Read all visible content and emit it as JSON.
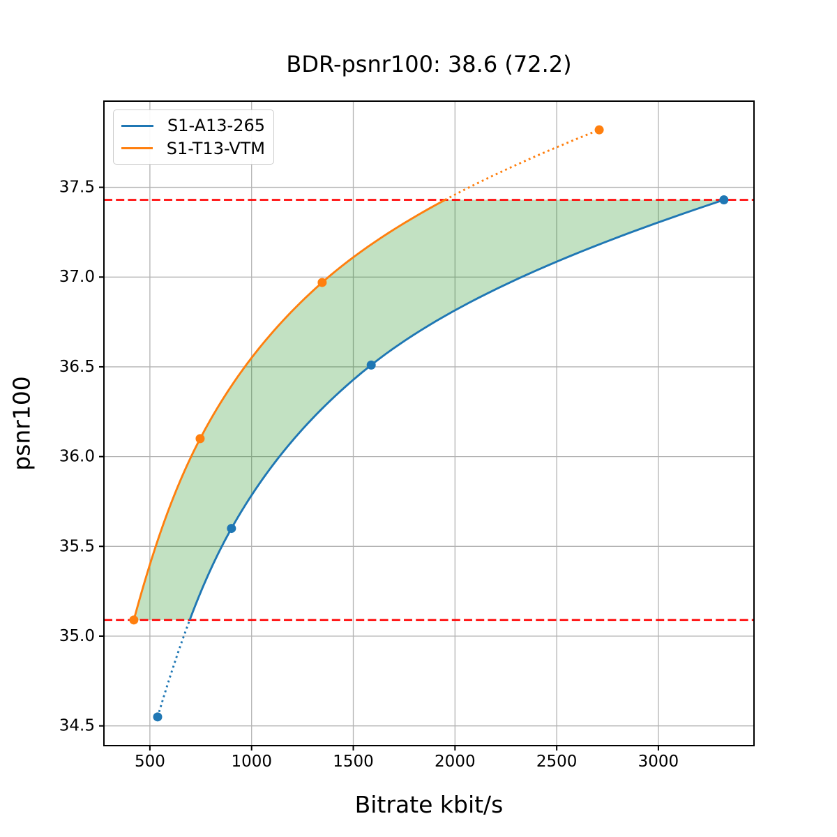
{
  "chart_data": {
    "type": "line",
    "title": "BDR-psnr100: 38.6 (72.2)",
    "xlabel": "Bitrate kbit/s",
    "ylabel": "psnr100",
    "xlim": [
      274,
      3470
    ],
    "ylim": [
      34.39,
      37.98
    ],
    "xticks": {
      "values": [
        500,
        1000,
        1500,
        2000,
        2500,
        3000
      ],
      "labels": [
        "500",
        "1000",
        "1500",
        "2000",
        "2500",
        "3000"
      ]
    },
    "yticks": {
      "values": [
        34.5,
        35.0,
        35.5,
        36.0,
        36.5,
        37.0,
        37.5
      ],
      "labels": [
        "34.5",
        "35.0",
        "35.5",
        "36.0",
        "36.5",
        "37.0",
        "37.5"
      ]
    },
    "grid": true,
    "grid_color": "#b3b3b3",
    "legend_position": "upper-left",
    "series": [
      {
        "name": "S1-A13-265",
        "color": "#1f77b4",
        "points": [
          [
            538,
            34.55
          ],
          [
            901,
            35.6
          ],
          [
            1588,
            36.51
          ],
          [
            3322,
            37.43
          ]
        ]
      },
      {
        "name": "S1-T13-VTM",
        "color": "#ff7f0e",
        "points": [
          [
            421,
            35.09
          ],
          [
            747,
            36.1
          ],
          [
            1347,
            36.97
          ],
          [
            2709,
            37.82
          ]
        ]
      }
    ],
    "hlines": {
      "color": "#ff0000",
      "style": "dashed",
      "values": [
        35.09,
        37.43
      ]
    },
    "overlap_fill": {
      "color": "#008000",
      "opacity": 0.24,
      "psnr_range": [
        35.09,
        37.43
      ]
    }
  }
}
